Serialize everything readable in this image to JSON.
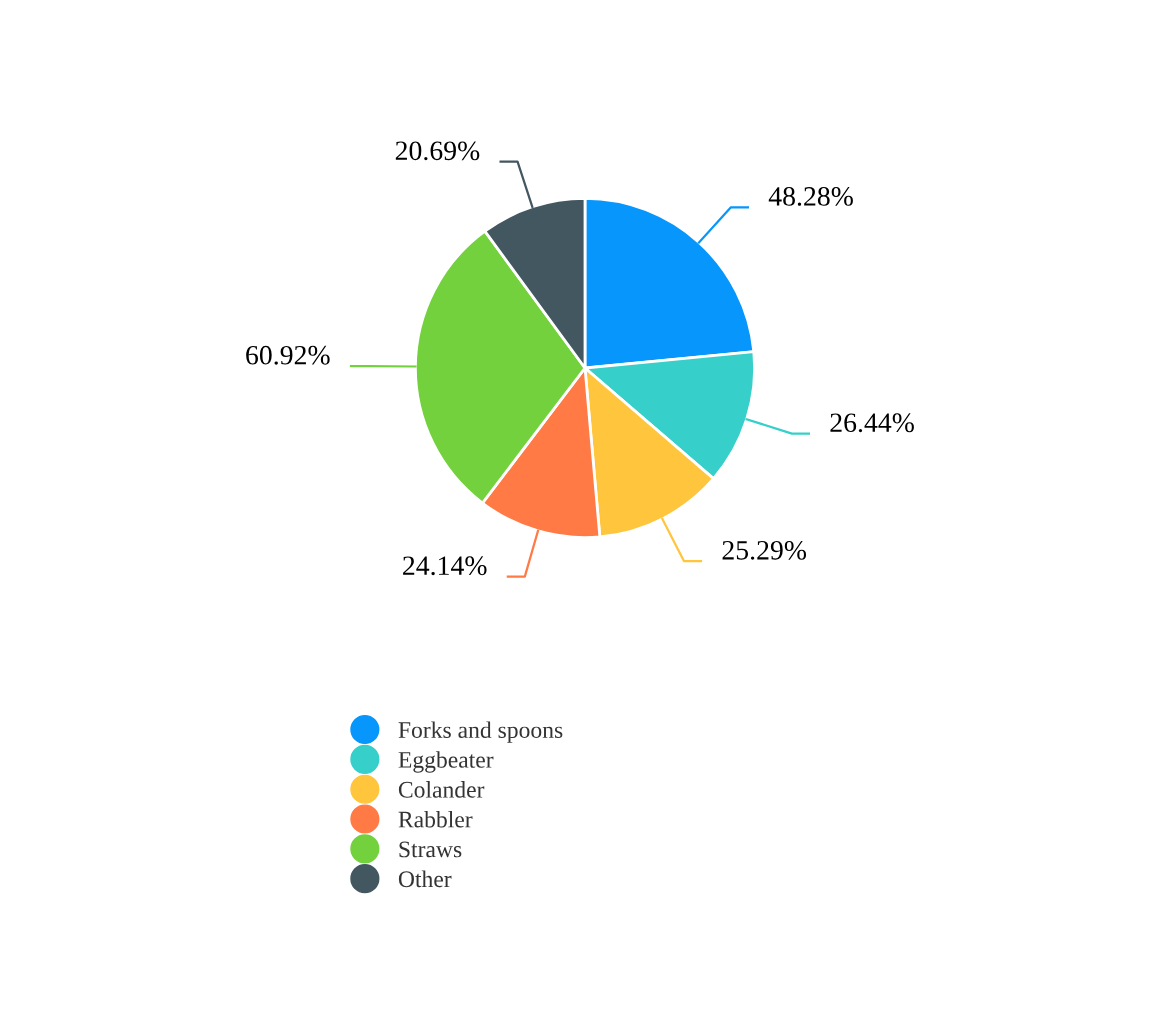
{
  "chart_data": {
    "type": "pie",
    "categories": [
      "Forks and spoons",
      "Eggbeater",
      "Colander",
      "Rabbler",
      "Straws",
      "Other"
    ],
    "values": [
      48.28,
      26.44,
      25.29,
      24.14,
      60.92,
      20.69
    ],
    "value_labels": [
      "48.28%",
      "26.44%",
      "25.29%",
      "24.14%",
      "60.92%",
      "20.69%"
    ],
    "colors": [
      "#0796fb",
      "#36cfc9",
      "#ffc53d",
      "#ff7a45",
      "#73d13d",
      "#435761"
    ],
    "legend": "bottom"
  }
}
